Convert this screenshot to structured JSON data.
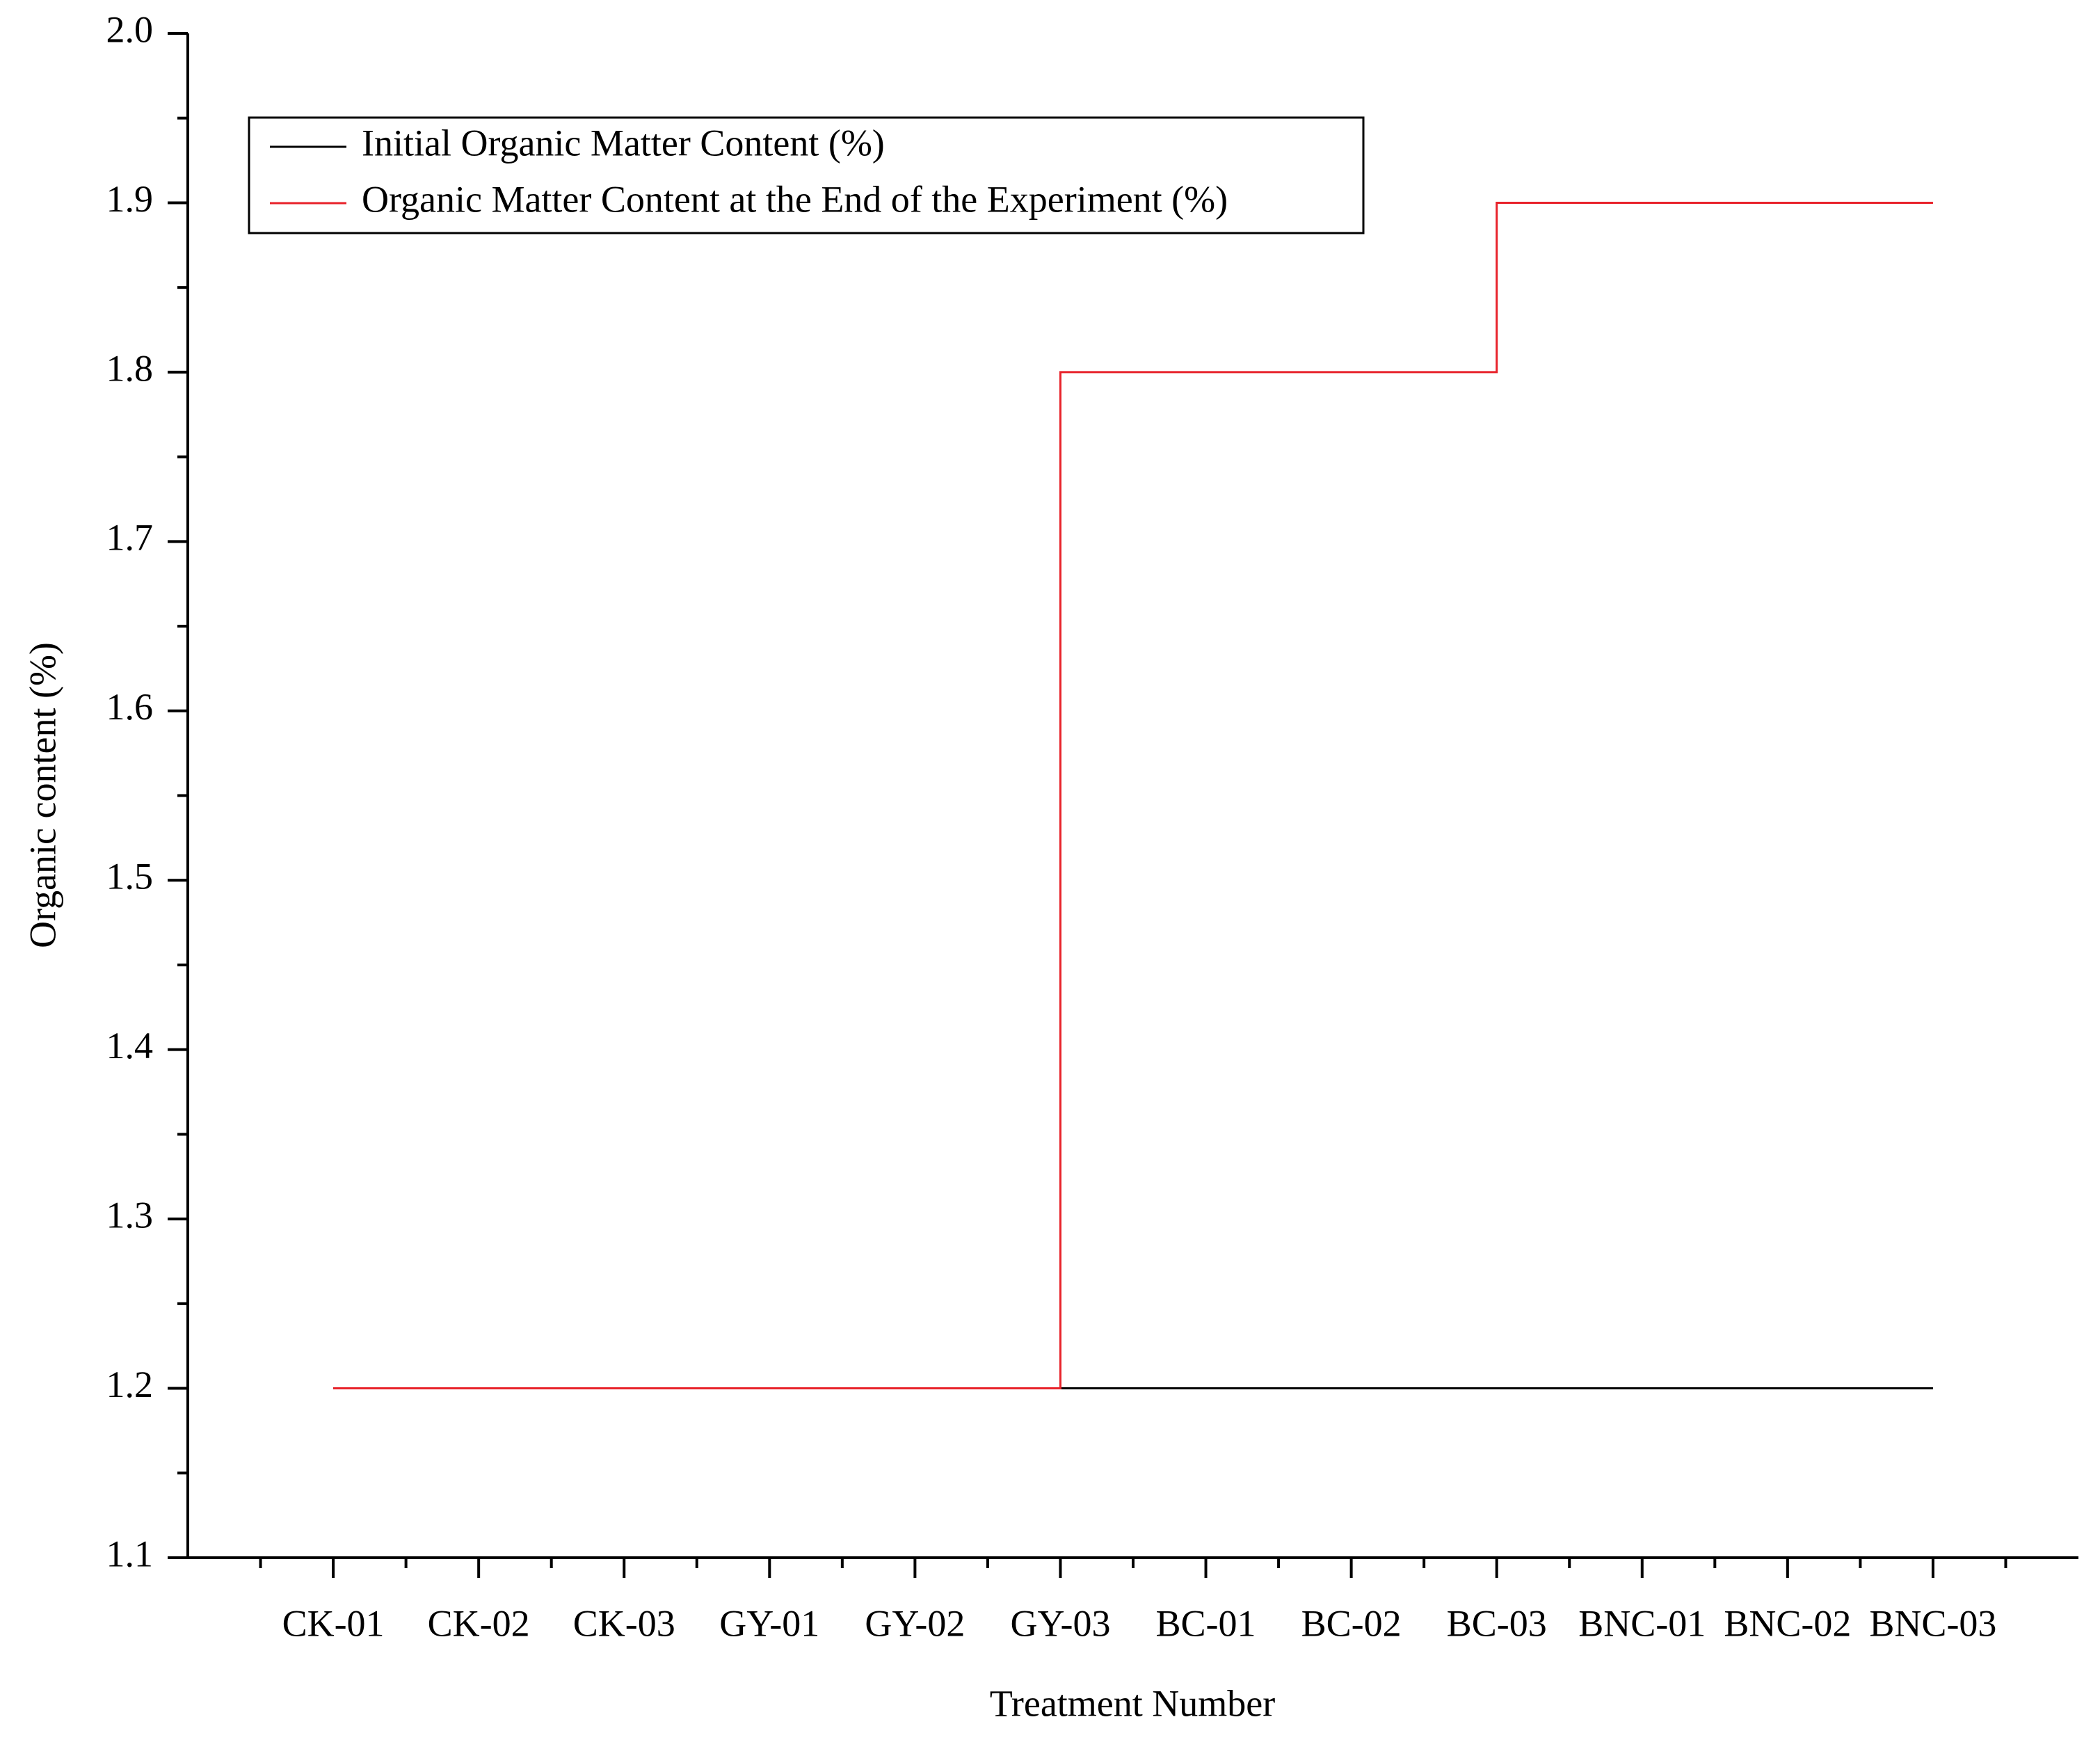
{
  "chart_data": {
    "type": "line",
    "step": "pre",
    "x_label": "Treatment Number",
    "y_label": "Organic content (%)",
    "categories": [
      "CK-01",
      "CK-02",
      "CK-03",
      "GY-01",
      "GY-02",
      "GY-03",
      "BC-01",
      "BC-02",
      "BC-03",
      "BNC-01",
      "BNC-02",
      "BNC-03"
    ],
    "series": [
      {
        "name": "Initial Organic Matter Content (%)",
        "color": "#000000",
        "values": [
          1.2,
          1.2,
          1.2,
          1.2,
          1.2,
          1.2,
          1.2,
          1.2,
          1.2,
          1.2,
          1.2,
          1.2
        ]
      },
      {
        "name": "Organic Matter Content at the End of the Experiment (%)",
        "color": "#e8222a",
        "values": [
          1.2,
          1.2,
          1.2,
          1.2,
          1.2,
          1.2,
          1.8,
          1.8,
          1.8,
          1.9,
          1.9,
          1.9
        ]
      }
    ],
    "ylim": [
      1.1,
      2.0
    ],
    "yticks": [
      1.1,
      1.2,
      1.3,
      1.4,
      1.5,
      1.6,
      1.7,
      1.8,
      1.9,
      {
        "value": 2.0,
        "label": "2.0"
      }
    ],
    "grid": false,
    "legend": "upper left"
  }
}
